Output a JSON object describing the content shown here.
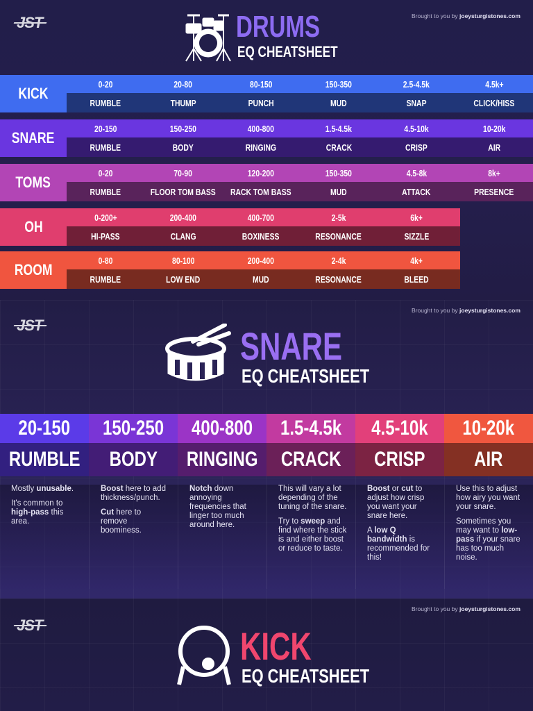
{
  "credit": {
    "prefix": "Brought to you by",
    "site": "joeysturgistones.com"
  },
  "logo": "JST",
  "drums": {
    "title": "DRUMS",
    "subtitle": "EQ CHEATSHEET",
    "rows": [
      {
        "name": "KICK",
        "color": "#3f6cf0",
        "ranges": [
          "0-20",
          "20-80",
          "80-150",
          "150-350",
          "2.5-4.5k",
          "4.5k+"
        ],
        "labels": [
          "RUMBLE",
          "THUMP",
          "PUNCH",
          "MUD",
          "SNAP",
          "CLICK/HISS"
        ]
      },
      {
        "name": "SNARE",
        "color": "#6a36e0",
        "ranges": [
          "20-150",
          "150-250",
          "400-800",
          "1.5-4.5k",
          "4.5-10k",
          "10-20k"
        ],
        "labels": [
          "RUMBLE",
          "BODY",
          "RINGING",
          "CRACK",
          "CRISP",
          "AIR"
        ]
      },
      {
        "name": "TOMS",
        "color": "#b245b5",
        "ranges": [
          "0-20",
          "70-90",
          "120-200",
          "150-350",
          "4.5-8k",
          "8k+"
        ],
        "labels": [
          "RUMBLE",
          "FLOOR TOM BASS",
          "RACK TOM BASS",
          "MUD",
          "ATTACK",
          "PRESENCE"
        ]
      },
      {
        "name": "OH",
        "color": "#e03e6e",
        "ranges": [
          "0-200+",
          "200-400",
          "400-700",
          "2-5k",
          "6k+"
        ],
        "labels": [
          "HI-PASS",
          "CLANG",
          "BOXINESS",
          "RESONANCE",
          "SIZZLE"
        ]
      },
      {
        "name": "ROOM",
        "color": "#f0553f",
        "ranges": [
          "0-80",
          "80-100",
          "200-400",
          "2-4k",
          "4k+"
        ],
        "labels": [
          "RUMBLE",
          "LOW END",
          "MUD",
          "RESONANCE",
          "BLEED"
        ]
      }
    ]
  },
  "snare": {
    "title": "SNARE",
    "subtitle": "EQ CHEATSHEET",
    "columns": [
      {
        "range": "20-150",
        "label": "RUMBLE",
        "color": "#5b3be8",
        "notes": [
          [
            {
              "t": "Mostly "
            },
            {
              "t": "unusable",
              "b": true
            },
            {
              "t": "."
            }
          ],
          [
            {
              "t": "It's common to "
            },
            {
              "t": "high-pass",
              "b": true
            },
            {
              "t": " this area."
            }
          ]
        ]
      },
      {
        "range": "150-250",
        "label": "BODY",
        "color": "#7a35d6",
        "notes": [
          [
            {
              "t": "Boost",
              "b": true
            },
            {
              "t": " here to add thickness/punch."
            }
          ],
          [
            {
              "t": "Cut",
              "b": true
            },
            {
              "t": " here to remove boominess."
            }
          ]
        ]
      },
      {
        "range": "400-800",
        "label": "RINGING",
        "color": "#9b34c6",
        "notes": [
          [
            {
              "t": "Notch",
              "b": true
            },
            {
              "t": " down annoying frequencies that linger too much around here."
            }
          ]
        ]
      },
      {
        "range": "1.5-4.5k",
        "label": "CRACK",
        "color": "#c23aa0",
        "notes": [
          [
            {
              "t": "This will vary a lot depending of the tuning of the snare."
            }
          ],
          [
            {
              "t": "Try to "
            },
            {
              "t": "sweep",
              "b": true
            },
            {
              "t": " and find where the stick is and either boost or reduce to taste."
            }
          ]
        ]
      },
      {
        "range": "4.5-10k",
        "label": "CRISP",
        "color": "#e2407a",
        "notes": [
          [
            {
              "t": "Boost",
              "b": true
            },
            {
              "t": " or "
            },
            {
              "t": "cut",
              "b": true
            },
            {
              "t": " to adjust how crisp you want your snare here."
            }
          ],
          [
            {
              "t": "A "
            },
            {
              "t": "low Q bandwidth",
              "b": true
            },
            {
              "t": " is recommended for this!"
            }
          ]
        ]
      },
      {
        "range": "10-20k",
        "label": "AIR",
        "color": "#f0573f",
        "notes": [
          [
            {
              "t": "Use this to adjust how airy you want your snare."
            }
          ],
          [
            {
              "t": "Sometimes you may want to "
            },
            {
              "t": "low-pass",
              "b": true
            },
            {
              "t": " if your snare has too much noise."
            }
          ]
        ]
      }
    ]
  },
  "kick": {
    "title": "KICK",
    "subtitle": "EQ CHEATSHEET"
  },
  "colors": {
    "drums_title": "#8d6cf2",
    "snare_title": "#9a6ff2",
    "kick_title": "#f0466e"
  }
}
